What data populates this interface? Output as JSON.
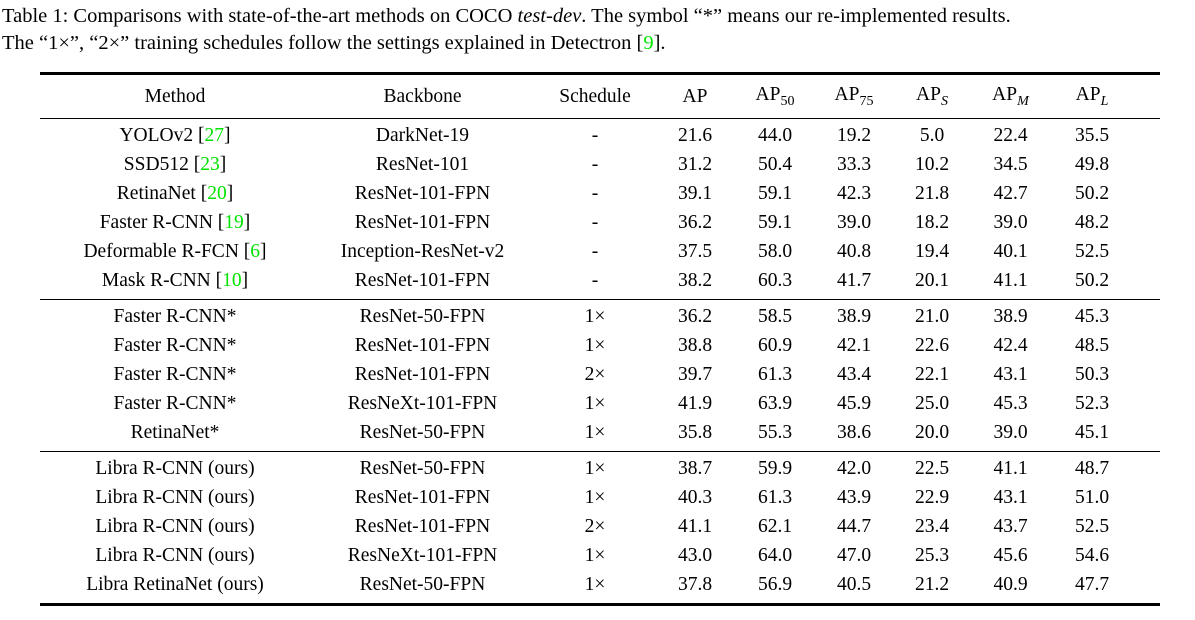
{
  "colors": {
    "citation_green": "#00e400",
    "text": "#000000",
    "background": "#ffffff"
  },
  "caption": {
    "lines": [
      [
        {
          "text": "Table 1: Comparisons with state-of-the-art methods on COCO ",
          "style": "normal"
        },
        {
          "text": "test-dev",
          "style": "italic"
        },
        {
          "text": ". The symbol “*” means our re-implemented results.",
          "style": "normal"
        }
      ],
      [
        {
          "text": "The “1×”, “2×” training schedules follow the settings explained in Detectron [",
          "style": "normal"
        },
        {
          "text": "9",
          "style": "ref"
        },
        {
          "text": "].",
          "style": "normal"
        }
      ]
    ]
  },
  "chart_data": {
    "type": "table",
    "title": "Comparisons with state-of-the-art methods on COCO test-dev",
    "columns": [
      "Method",
      "Backbone",
      "Schedule",
      "AP",
      "AP50",
      "AP75",
      "APS",
      "APM",
      "APL"
    ],
    "sections": [
      {
        "rows": [
          {
            "method": "YOLOv2",
            "ref": "27",
            "backbone": "DarkNet-19",
            "schedule": "-",
            "metrics": [
              "21.6",
              "44.0",
              "19.2",
              "5.0",
              "22.4",
              "35.5"
            ]
          },
          {
            "method": "SSD512",
            "ref": "23",
            "backbone": "ResNet-101",
            "schedule": "-",
            "metrics": [
              "31.2",
              "50.4",
              "33.3",
              "10.2",
              "34.5",
              "49.8"
            ]
          },
          {
            "method": "RetinaNet",
            "ref": "20",
            "backbone": "ResNet-101-FPN",
            "schedule": "-",
            "metrics": [
              "39.1",
              "59.1",
              "42.3",
              "21.8",
              "42.7",
              "50.2"
            ]
          },
          {
            "method": "Faster R-CNN",
            "ref": "19",
            "backbone": "ResNet-101-FPN",
            "schedule": "-",
            "metrics": [
              "36.2",
              "59.1",
              "39.0",
              "18.2",
              "39.0",
              "48.2"
            ]
          },
          {
            "method": "Deformable R-FCN",
            "ref": "6",
            "backbone": "Inception-ResNet-v2",
            "schedule": "-",
            "metrics": [
              "37.5",
              "58.0",
              "40.8",
              "19.4",
              "40.1",
              "52.5"
            ]
          },
          {
            "method": "Mask R-CNN",
            "ref": "10",
            "backbone": "ResNet-101-FPN",
            "schedule": "-",
            "metrics": [
              "38.2",
              "60.3",
              "41.7",
              "20.1",
              "41.1",
              "50.2"
            ]
          }
        ]
      },
      {
        "rows": [
          {
            "method": "Faster R-CNN*",
            "ref": "",
            "backbone": "ResNet-50-FPN",
            "schedule": "1×",
            "metrics": [
              "36.2",
              "58.5",
              "38.9",
              "21.0",
              "38.9",
              "45.3"
            ]
          },
          {
            "method": "Faster R-CNN*",
            "ref": "",
            "backbone": "ResNet-101-FPN",
            "schedule": "1×",
            "metrics": [
              "38.8",
              "60.9",
              "42.1",
              "22.6",
              "42.4",
              "48.5"
            ]
          },
          {
            "method": "Faster R-CNN*",
            "ref": "",
            "backbone": "ResNet-101-FPN",
            "schedule": "2×",
            "metrics": [
              "39.7",
              "61.3",
              "43.4",
              "22.1",
              "43.1",
              "50.3"
            ]
          },
          {
            "method": "Faster R-CNN*",
            "ref": "",
            "backbone": "ResNeXt-101-FPN",
            "schedule": "1×",
            "metrics": [
              "41.9",
              "63.9",
              "45.9",
              "25.0",
              "45.3",
              "52.3"
            ]
          },
          {
            "method": "RetinaNet*",
            "ref": "",
            "backbone": "ResNet-50-FPN",
            "schedule": "1×",
            "metrics": [
              "35.8",
              "55.3",
              "38.6",
              "20.0",
              "39.0",
              "45.1"
            ]
          }
        ]
      },
      {
        "rows": [
          {
            "method": "Libra R-CNN (ours)",
            "ref": "",
            "backbone": "ResNet-50-FPN",
            "schedule": "1×",
            "metrics": [
              "38.7",
              "59.9",
              "42.0",
              "22.5",
              "41.1",
              "48.7"
            ]
          },
          {
            "method": "Libra R-CNN (ours)",
            "ref": "",
            "backbone": "ResNet-101-FPN",
            "schedule": "1×",
            "metrics": [
              "40.3",
              "61.3",
              "43.9",
              "22.9",
              "43.1",
              "51.0"
            ]
          },
          {
            "method": "Libra R-CNN (ours)",
            "ref": "",
            "backbone": "ResNet-101-FPN",
            "schedule": "2×",
            "metrics": [
              "41.1",
              "62.1",
              "44.7",
              "23.4",
              "43.7",
              "52.5"
            ]
          },
          {
            "method": "Libra R-CNN (ours)",
            "ref": "",
            "backbone": "ResNeXt-101-FPN",
            "schedule": "1×",
            "metrics": [
              "43.0",
              "64.0",
              "47.0",
              "25.3",
              "45.6",
              "54.6"
            ]
          },
          {
            "method": "Libra RetinaNet (ours)",
            "ref": "",
            "backbone": "ResNet-50-FPN",
            "schedule": "1×",
            "metrics": [
              "37.8",
              "56.9",
              "40.5",
              "21.2",
              "40.9",
              "47.7"
            ]
          }
        ]
      }
    ],
    "headers": [
      {
        "label": "Method",
        "sub": ""
      },
      {
        "label": "Backbone",
        "sub": ""
      },
      {
        "label": "Schedule",
        "sub": ""
      },
      {
        "label": "AP",
        "sub": ""
      },
      {
        "label": "AP",
        "sub": "50"
      },
      {
        "label": "AP",
        "sub": "75"
      },
      {
        "label": "AP",
        "sub": "S"
      },
      {
        "label": "AP",
        "sub": "M"
      },
      {
        "label": "AP",
        "sub": "L"
      }
    ]
  }
}
